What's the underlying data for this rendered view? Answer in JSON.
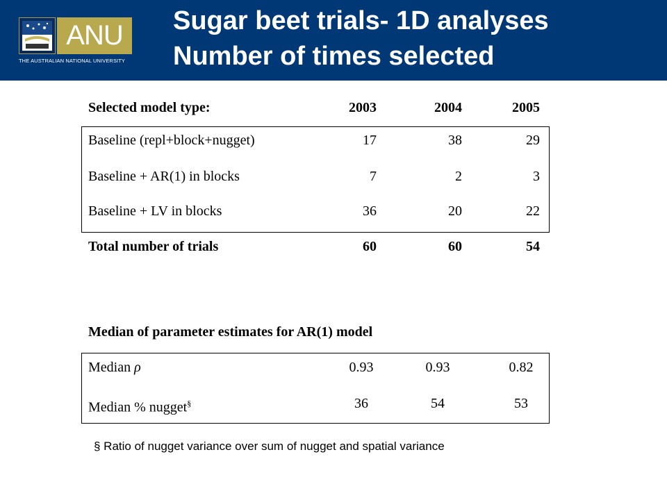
{
  "header": {
    "logo_text": "ANU",
    "university": "THE AUSTRALIAN NATIONAL UNIVERSITY",
    "title_line1": "Sugar beet trials- 1D analyses",
    "title_line2": "Number of times selected",
    "colors": {
      "header_bg": "#003876",
      "logo_gold": "#b8a84e"
    }
  },
  "table1": {
    "header": [
      "Selected model type:",
      "2003",
      "2004",
      "2005"
    ],
    "rows": [
      [
        "Baseline (repl+block+nugget)",
        "17",
        "38",
        "29"
      ],
      [
        "Baseline + AR(1) in blocks",
        "7",
        "2",
        "3"
      ],
      [
        "Baseline + LV in blocks",
        "36",
        "20",
        "22"
      ]
    ],
    "total": [
      "Total number of trials",
      "60",
      "60",
      "54"
    ]
  },
  "table2": {
    "title": "Median of parameter estimates for AR(1) model",
    "rows": [
      [
        "Median ",
        "0.93",
        "0.93",
        "0.82"
      ],
      [
        "Median % nugget",
        "36",
        "54",
        "53"
      ]
    ],
    "rho_symbol": "ρ",
    "superscript": "§"
  },
  "footnote": "§ Ratio of nugget variance over sum of nugget and spatial variance"
}
